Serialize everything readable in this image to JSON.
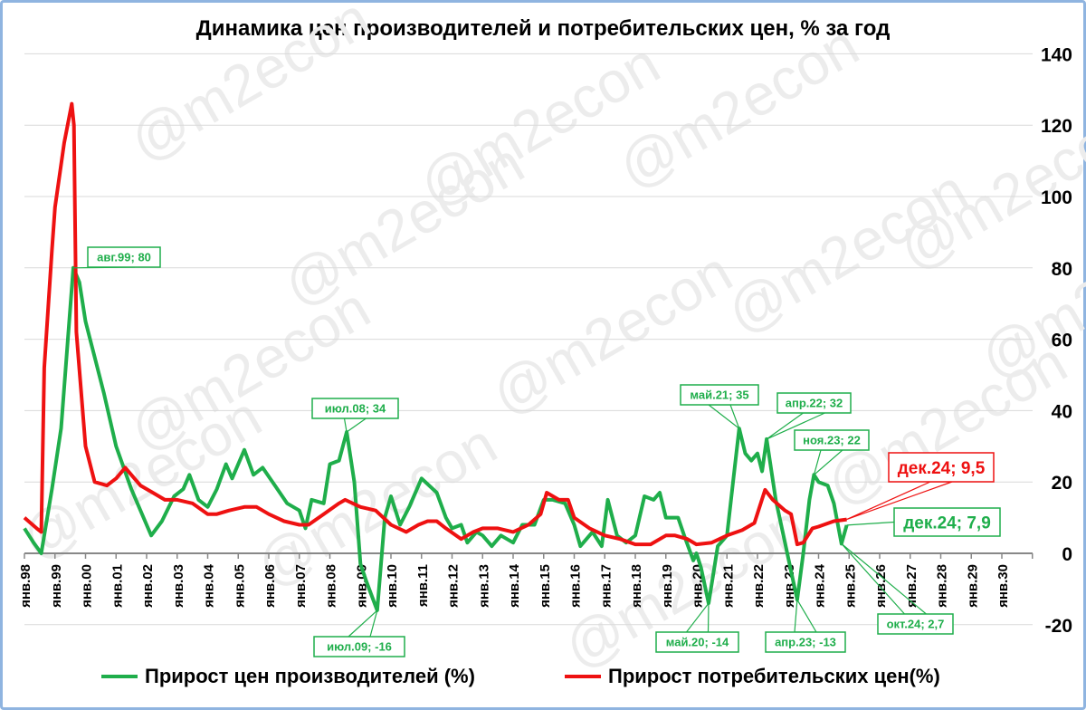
{
  "chart_data": {
    "type": "line",
    "title": "Динамика цен производителей и потребительских цен, % за год",
    "watermark": "@m2econ",
    "ylim": [
      -20,
      140
    ],
    "yticks": [
      -20,
      0,
      20,
      40,
      60,
      80,
      100,
      120,
      140
    ],
    "y_axis_position": "right",
    "xlim": [
      1998,
      2031
    ],
    "xticks": [
      "янв.98",
      "янв.99",
      "янв.00",
      "янв.01",
      "янв.02",
      "янв.03",
      "янв.04",
      "янв.05",
      "янв.06",
      "янв.07",
      "янв.08",
      "янв.09",
      "янв.10",
      "янв.11",
      "янв.12",
      "янв.13",
      "янв.14",
      "янв.15",
      "янв.16",
      "янв.17",
      "янв.18",
      "янв.19",
      "янв.20",
      "янв.21",
      "янв.22",
      "янв.23",
      "янв.24",
      "янв.25",
      "янв.26",
      "янв.27",
      "янв.28",
      "янв.29",
      "янв.30"
    ],
    "grid": true,
    "legend_placement": "bottom",
    "colors": {
      "producer": "#1fae4b",
      "consumer": "#ee1111"
    },
    "series": [
      {
        "name": "Прирост цен производителей (%)",
        "key": "producer",
        "points": [
          [
            1998.0,
            7
          ],
          [
            1998.3,
            3
          ],
          [
            1998.55,
            0
          ],
          [
            1998.9,
            18
          ],
          [
            1999.2,
            35
          ],
          [
            1999.6,
            80
          ],
          [
            1999.8,
            76
          ],
          [
            2000.0,
            65
          ],
          [
            2000.3,
            55
          ],
          [
            2000.6,
            45
          ],
          [
            2001.0,
            30
          ],
          [
            2001.5,
            18
          ],
          [
            2002.0,
            8
          ],
          [
            2002.15,
            5
          ],
          [
            2002.5,
            9
          ],
          [
            2002.9,
            16
          ],
          [
            2003.2,
            18
          ],
          [
            2003.4,
            22
          ],
          [
            2003.7,
            15
          ],
          [
            2004.0,
            13
          ],
          [
            2004.3,
            18
          ],
          [
            2004.6,
            25
          ],
          [
            2004.8,
            21
          ],
          [
            2005.2,
            29
          ],
          [
            2005.5,
            22
          ],
          [
            2005.8,
            24
          ],
          [
            2006.2,
            19
          ],
          [
            2006.6,
            14
          ],
          [
            2007.0,
            12
          ],
          [
            2007.2,
            7
          ],
          [
            2007.4,
            15
          ],
          [
            2007.8,
            14
          ],
          [
            2008.0,
            25
          ],
          [
            2008.3,
            26
          ],
          [
            2008.55,
            34
          ],
          [
            2008.8,
            20
          ],
          [
            2009.0,
            -3
          ],
          [
            2009.2,
            -8
          ],
          [
            2009.55,
            -16
          ],
          [
            2009.8,
            10
          ],
          [
            2010.0,
            16
          ],
          [
            2010.3,
            8
          ],
          [
            2010.6,
            13
          ],
          [
            2011.0,
            21
          ],
          [
            2011.5,
            17
          ],
          [
            2011.8,
            10
          ],
          [
            2012.0,
            7
          ],
          [
            2012.3,
            8
          ],
          [
            2012.5,
            3
          ],
          [
            2012.8,
            6
          ],
          [
            2013.0,
            5
          ],
          [
            2013.3,
            2
          ],
          [
            2013.6,
            5
          ],
          [
            2014.0,
            3
          ],
          [
            2014.3,
            8
          ],
          [
            2014.7,
            8
          ],
          [
            2015.0,
            15
          ],
          [
            2015.3,
            15
          ],
          [
            2015.7,
            14
          ],
          [
            2016.0,
            8
          ],
          [
            2016.2,
            2
          ],
          [
            2016.6,
            6
          ],
          [
            2016.9,
            2
          ],
          [
            2017.1,
            15
          ],
          [
            2017.4,
            5
          ],
          [
            2017.7,
            3
          ],
          [
            2018.0,
            5
          ],
          [
            2018.3,
            16
          ],
          [
            2018.6,
            15
          ],
          [
            2018.8,
            17
          ],
          [
            2019.0,
            10
          ],
          [
            2019.4,
            10
          ],
          [
            2019.6,
            5
          ],
          [
            2019.9,
            -2
          ],
          [
            2020.0,
            0
          ],
          [
            2020.15,
            -4
          ],
          [
            2020.4,
            -14
          ],
          [
            2020.7,
            2
          ],
          [
            2021.0,
            5
          ],
          [
            2021.2,
            20
          ],
          [
            2021.4,
            35
          ],
          [
            2021.6,
            28
          ],
          [
            2021.8,
            26
          ],
          [
            2022.0,
            28
          ],
          [
            2022.15,
            23
          ],
          [
            2022.3,
            32
          ],
          [
            2022.6,
            15
          ],
          [
            2022.9,
            3
          ],
          [
            2023.1,
            -5
          ],
          [
            2023.3,
            -13
          ],
          [
            2023.5,
            0
          ],
          [
            2023.7,
            15
          ],
          [
            2023.85,
            22
          ],
          [
            2024.0,
            20
          ],
          [
            2024.3,
            19
          ],
          [
            2024.5,
            14
          ],
          [
            2024.75,
            2.7
          ],
          [
            2024.92,
            7.9
          ]
        ]
      },
      {
        "name": "Прирост потребительских цен(%)",
        "key": "consumer",
        "points": [
          [
            1998.0,
            10
          ],
          [
            1998.4,
            7
          ],
          [
            1998.55,
            6
          ],
          [
            1998.65,
            52
          ],
          [
            1998.9,
            85
          ],
          [
            1999.0,
            97
          ],
          [
            1999.3,
            115
          ],
          [
            1999.55,
            126
          ],
          [
            1999.62,
            120
          ],
          [
            1999.7,
            62
          ],
          [
            2000.0,
            30
          ],
          [
            2000.3,
            20
          ],
          [
            2000.7,
            19
          ],
          [
            2001.0,
            21
          ],
          [
            2001.3,
            24
          ],
          [
            2001.5,
            22
          ],
          [
            2001.8,
            19
          ],
          [
            2002.2,
            17
          ],
          [
            2002.6,
            15
          ],
          [
            2003.0,
            15
          ],
          [
            2003.5,
            14
          ],
          [
            2004.0,
            11
          ],
          [
            2004.3,
            11
          ],
          [
            2004.7,
            12
          ],
          [
            2005.2,
            13
          ],
          [
            2005.6,
            13
          ],
          [
            2006.0,
            11
          ],
          [
            2006.5,
            9
          ],
          [
            2007.0,
            8
          ],
          [
            2007.3,
            8
          ],
          [
            2007.8,
            11
          ],
          [
            2008.3,
            14
          ],
          [
            2008.5,
            15
          ],
          [
            2009.0,
            13
          ],
          [
            2009.5,
            12
          ],
          [
            2010.0,
            8
          ],
          [
            2010.5,
            6
          ],
          [
            2010.9,
            8
          ],
          [
            2011.2,
            9
          ],
          [
            2011.5,
            9
          ],
          [
            2011.8,
            7
          ],
          [
            2012.3,
            4
          ],
          [
            2012.7,
            6
          ],
          [
            2013.0,
            7
          ],
          [
            2013.5,
            7
          ],
          [
            2014.0,
            6
          ],
          [
            2014.5,
            8
          ],
          [
            2014.9,
            11
          ],
          [
            2015.1,
            17
          ],
          [
            2015.5,
            15
          ],
          [
            2015.8,
            15
          ],
          [
            2016.0,
            10
          ],
          [
            2016.5,
            7
          ],
          [
            2017.0,
            5
          ],
          [
            2017.5,
            4
          ],
          [
            2018.0,
            2.5
          ],
          [
            2018.5,
            2.5
          ],
          [
            2019.0,
            5
          ],
          [
            2019.3,
            5
          ],
          [
            2019.7,
            4
          ],
          [
            2020.0,
            2.5
          ],
          [
            2020.5,
            3
          ],
          [
            2021.0,
            5
          ],
          [
            2021.5,
            6.5
          ],
          [
            2021.9,
            8.5
          ],
          [
            2022.25,
            17.8
          ],
          [
            2022.5,
            15
          ],
          [
            2022.9,
            12
          ],
          [
            2023.1,
            11
          ],
          [
            2023.3,
            2.5
          ],
          [
            2023.5,
            3
          ],
          [
            2023.8,
            7
          ],
          [
            2024.0,
            7.5
          ],
          [
            2024.5,
            9
          ],
          [
            2024.92,
            9.5
          ]
        ]
      }
    ],
    "annotations": [
      {
        "text": "авг.99; 80",
        "series": "producer",
        "t": 1999.6,
        "v": 80
      },
      {
        "text": "июл.08; 34",
        "series": "producer",
        "t": 2008.55,
        "v": 34
      },
      {
        "text": "июл.09; -16",
        "series": "producer",
        "t": 2009.55,
        "v": -16
      },
      {
        "text": "май.20; -14",
        "series": "producer",
        "t": 2020.4,
        "v": -14
      },
      {
        "text": "май.21; 35",
        "series": "producer",
        "t": 2021.4,
        "v": 35
      },
      {
        "text": "апр.22; 32",
        "series": "producer",
        "t": 2022.3,
        "v": 32
      },
      {
        "text": "апр.23; -13",
        "series": "producer",
        "t": 2023.3,
        "v": -13
      },
      {
        "text": "ноя.23; 22",
        "series": "producer",
        "t": 2023.85,
        "v": 22
      },
      {
        "text": "окт.24; 2,7",
        "series": "producer",
        "t": 2024.75,
        "v": 2.7
      },
      {
        "text": "дек.24; 9,5",
        "series": "consumer",
        "t": 2024.92,
        "v": 9.5
      },
      {
        "text": "дек.24; 7,9",
        "series": "producer",
        "t": 2024.92,
        "v": 7.9
      }
    ]
  }
}
